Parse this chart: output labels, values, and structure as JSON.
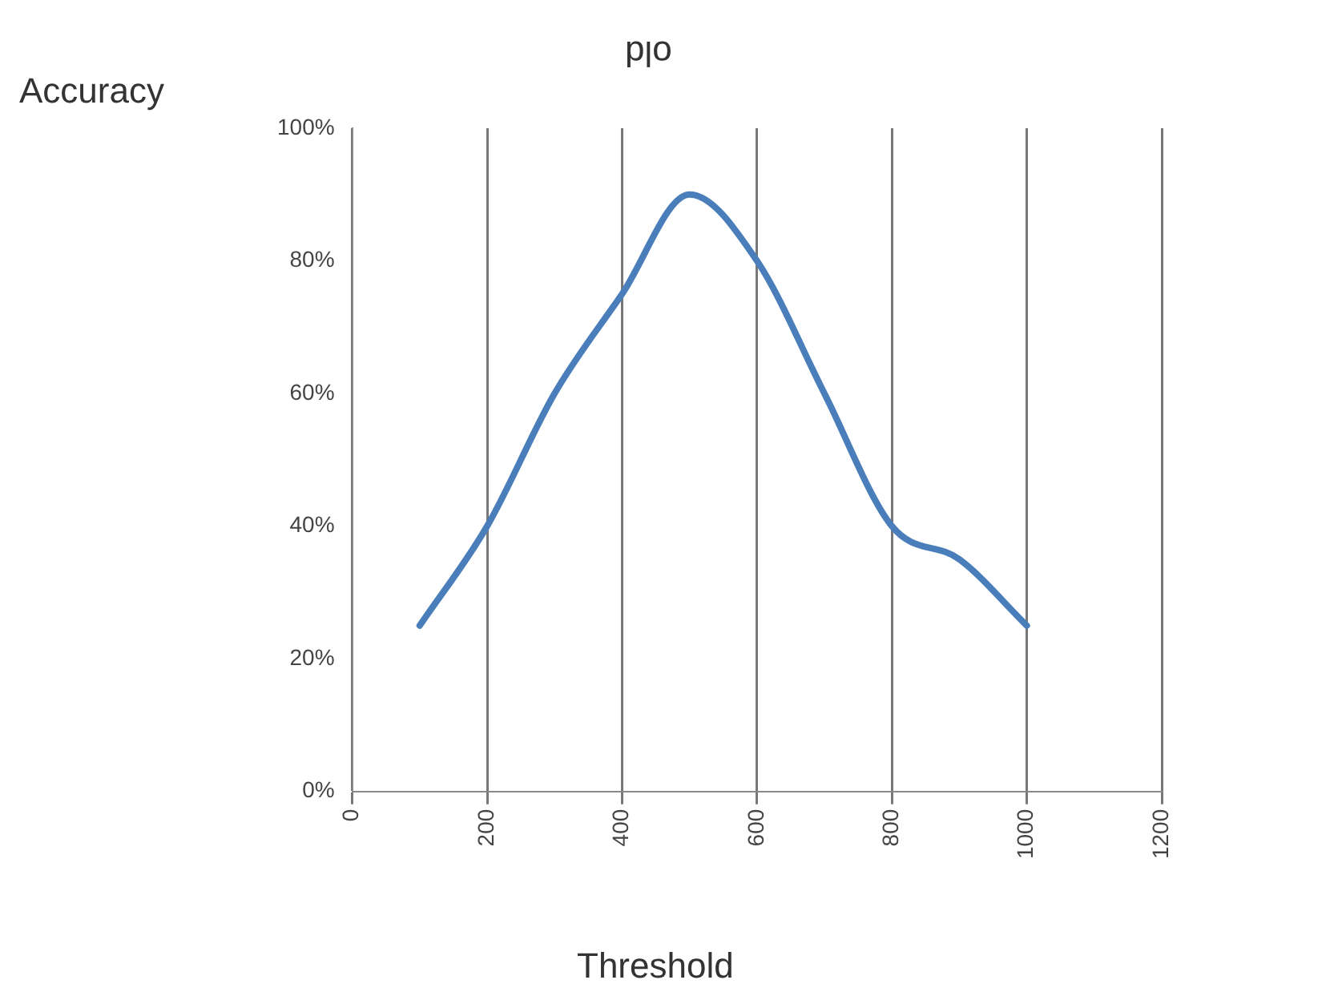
{
  "chart_data": {
    "type": "line",
    "title": "old",
    "xlabel": "Threshold",
    "ylabel": "Accuracy",
    "x": [
      100,
      200,
      300,
      400,
      500,
      600,
      700,
      800,
      900,
      1000
    ],
    "series": [
      {
        "color": "#4a7ebb",
        "values": [
          25,
          40,
          60,
          75,
          90,
          80,
          60,
          40,
          35,
          25
        ]
      }
    ],
    "xlim": [
      0,
      1200
    ],
    "xticks": [
      0,
      200,
      400,
      600,
      800,
      1000,
      1200
    ],
    "ylim": [
      0,
      100
    ],
    "yticks": [
      {
        "value": 0,
        "label": "0%"
      },
      {
        "value": 20,
        "label": "20%"
      },
      {
        "value": 40,
        "label": "40%"
      },
      {
        "value": 60,
        "label": "60%"
      },
      {
        "value": 80,
        "label": "80%"
      },
      {
        "value": 100,
        "label": "100%"
      }
    ],
    "grid": "x",
    "legend": false,
    "marker": "none",
    "line_style": "solid"
  }
}
